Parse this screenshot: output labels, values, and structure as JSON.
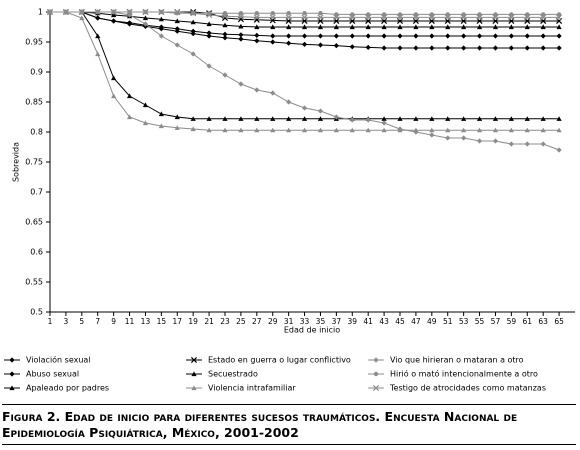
{
  "chart_data": {
    "type": "line",
    "y_label": "Sobrevida",
    "x_label": "Edad de inicio",
    "caption": "Figura 2. Edad de inicio para diferentes sucesos traumáticos. Encuesta Nacional de Epidemiología Psiquiátrica, México, 2001-2002",
    "x": [
      1,
      3,
      5,
      7,
      9,
      11,
      13,
      15,
      17,
      19,
      21,
      23,
      25,
      27,
      29,
      31,
      33,
      35,
      37,
      39,
      41,
      43,
      45,
      47,
      49,
      51,
      53,
      55,
      57,
      59,
      61,
      63,
      65
    ],
    "xlim": [
      1,
      67
    ],
    "xticks": [
      1,
      3,
      5,
      7,
      9,
      11,
      13,
      15,
      17,
      19,
      21,
      23,
      25,
      27,
      29,
      31,
      33,
      35,
      37,
      39,
      41,
      43,
      45,
      47,
      49,
      51,
      53,
      55,
      57,
      59,
      61,
      63,
      65
    ],
    "ylim": [
      0.5,
      1
    ],
    "yticks": [
      0.5,
      0.55,
      0.6,
      0.65,
      0.7,
      0.75,
      0.8,
      0.85,
      0.9,
      0.95,
      1
    ],
    "series": [
      {
        "name": "Violación sexual",
        "color": "#000000",
        "marker": "diamond",
        "values": [
          1,
          1,
          1,
          0.99,
          0.985,
          0.982,
          0.978,
          0.975,
          0.972,
          0.968,
          0.965,
          0.963,
          0.962,
          0.961,
          0.96,
          0.96,
          0.96,
          0.96,
          0.96,
          0.96,
          0.96,
          0.96,
          0.96,
          0.96,
          0.96,
          0.96,
          0.96,
          0.96,
          0.96,
          0.96,
          0.96,
          0.96,
          0.96
        ]
      },
      {
        "name": "Abuso sexual",
        "color": "#000000",
        "marker": "diamond",
        "values": [
          1,
          1,
          1,
          0.99,
          0.985,
          0.98,
          0.976,
          0.972,
          0.968,
          0.964,
          0.96,
          0.957,
          0.955,
          0.952,
          0.95,
          0.948,
          0.946,
          0.945,
          0.944,
          0.942,
          0.941,
          0.94,
          0.94,
          0.94,
          0.94,
          0.94,
          0.94,
          0.94,
          0.94,
          0.94,
          0.94,
          0.94,
          0.94
        ]
      },
      {
        "name": "Apaleado por padres",
        "color": "#000000",
        "marker": "triangle",
        "values": [
          1,
          1,
          1,
          0.96,
          0.89,
          0.86,
          0.845,
          0.83,
          0.825,
          0.822,
          0.822,
          0.822,
          0.822,
          0.822,
          0.822,
          0.822,
          0.822,
          0.822,
          0.822,
          0.822,
          0.822,
          0.822,
          0.822,
          0.822,
          0.822,
          0.822,
          0.822,
          0.822,
          0.822,
          0.822,
          0.822,
          0.822,
          0.822
        ]
      },
      {
        "name": "Estado en guerra o lugar conflictivo",
        "color": "#000000",
        "marker": "x",
        "values": [
          1,
          1,
          1,
          1,
          1,
          1,
          1,
          1,
          1,
          1,
          0.998,
          0.99,
          0.988,
          0.987,
          0.986,
          0.985,
          0.985,
          0.985,
          0.985,
          0.985,
          0.985,
          0.985,
          0.985,
          0.985,
          0.985,
          0.985,
          0.985,
          0.985,
          0.985,
          0.985,
          0.985,
          0.985,
          0.985
        ]
      },
      {
        "name": "Secuestrado",
        "color": "#000000",
        "marker": "triangle",
        "values": [
          1,
          1,
          1,
          0.998,
          0.995,
          0.993,
          0.99,
          0.988,
          0.985,
          0.983,
          0.98,
          0.978,
          0.976,
          0.975,
          0.975,
          0.975,
          0.975,
          0.975,
          0.975,
          0.975,
          0.975,
          0.975,
          0.975,
          0.975,
          0.975,
          0.975,
          0.975,
          0.975,
          0.975,
          0.975,
          0.975,
          0.975,
          0.975
        ]
      },
      {
        "name": "Violencia intrafamiliar",
        "color": "#8c8c8c",
        "marker": "triangle",
        "values": [
          1,
          1,
          0.99,
          0.93,
          0.86,
          0.825,
          0.815,
          0.81,
          0.807,
          0.805,
          0.803,
          0.803,
          0.803,
          0.803,
          0.803,
          0.803,
          0.803,
          0.803,
          0.803,
          0.803,
          0.803,
          0.803,
          0.803,
          0.803,
          0.803,
          0.803,
          0.803,
          0.803,
          0.803,
          0.803,
          0.803,
          0.803,
          0.803
        ]
      },
      {
        "name": "Vio que hirieran o mataran a otro",
        "color": "#8c8c8c",
        "marker": "diamond",
        "values": [
          1,
          1,
          1,
          1,
          1,
          0.995,
          0.98,
          0.96,
          0.945,
          0.93,
          0.91,
          0.895,
          0.88,
          0.87,
          0.865,
          0.85,
          0.84,
          0.835,
          0.825,
          0.82,
          0.82,
          0.815,
          0.805,
          0.8,
          0.795,
          0.79,
          0.79,
          0.785,
          0.785,
          0.78,
          0.78,
          0.78,
          0.77
        ]
      },
      {
        "name": "Hirió o mató intencionalmente a otro",
        "color": "#8c8c8c",
        "marker": "circle",
        "values": [
          1,
          1,
          1,
          1,
          1,
          1,
          1,
          1,
          0.998,
          0.998,
          0.998,
          0.998,
          0.998,
          0.998,
          0.998,
          0.998,
          0.998,
          0.998,
          0.996,
          0.996,
          0.996,
          0.996,
          0.996,
          0.996,
          0.996,
          0.996,
          0.996,
          0.996,
          0.996,
          0.996,
          0.996,
          0.996,
          0.996
        ]
      },
      {
        "name": "Testigo de atrocidades como matanzas",
        "color": "#8c8c8c",
        "marker": "x",
        "values": [
          1,
          1,
          1,
          1,
          1,
          1,
          1,
          1,
          1,
          0.998,
          0.995,
          0.993,
          0.992,
          0.991,
          0.991,
          0.991,
          0.991,
          0.991,
          0.991,
          0.991,
          0.991,
          0.991,
          0.991,
          0.991,
          0.991,
          0.991,
          0.991,
          0.991,
          0.991,
          0.991,
          0.991,
          0.991,
          0.991
        ]
      }
    ]
  }
}
